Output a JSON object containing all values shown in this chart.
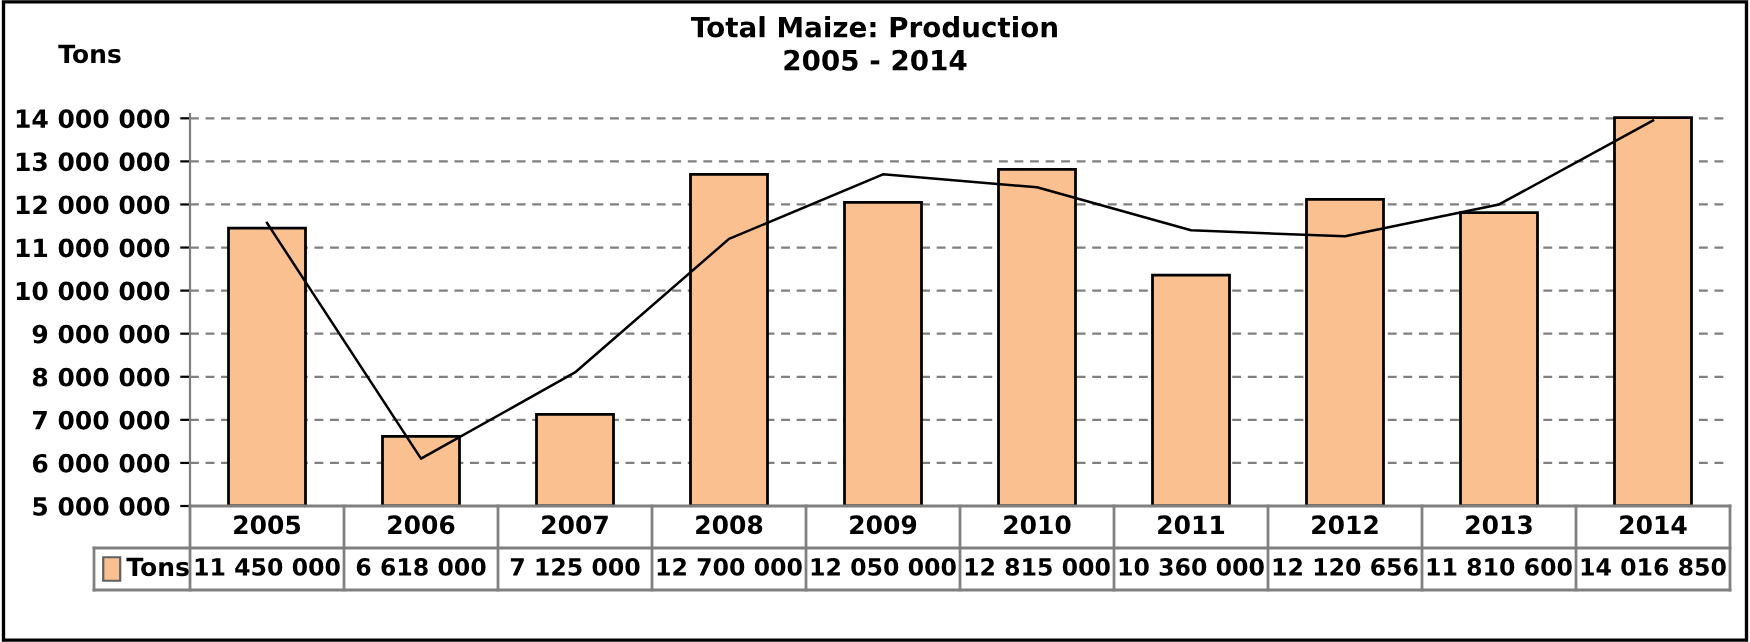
{
  "chart_data": {
    "type": "bar",
    "title": "Total Maize: Production\n2005 - 2014",
    "ylabel": "Tons",
    "categories": [
      "2005",
      "2006",
      "2007",
      "2008",
      "2009",
      "2010",
      "2011",
      "2012",
      "2013",
      "2014"
    ],
    "series": [
      {
        "name": "Tons",
        "color": "#fac090",
        "values": [
          11450000,
          6618000,
          7125000,
          12700000,
          12050000,
          12815000,
          10360000,
          12120656,
          11810600,
          14016850
        ],
        "value_labels": [
          "11 450 000",
          "6 618 000",
          "7 125 000",
          "12 700 000",
          "12 050 000",
          "12 815 000",
          "10 360 000",
          "12 120 656",
          "11 810 600",
          "14 016 850"
        ]
      },
      {
        "type": "line",
        "color": "#000000",
        "values": [
          11570000,
          6100000,
          8100000,
          11200000,
          12700000,
          12400000,
          11400000,
          11260000,
          12000000,
          13950000
        ]
      }
    ],
    "legend": "bottom left",
    "ylim": [
      5000000,
      14100000
    ],
    "yticks": [
      {
        "value": 5000000,
        "label": "5 000 000"
      },
      {
        "value": 6000000,
        "label": "6 000 000"
      },
      {
        "value": 7000000,
        "label": "7 000 000"
      },
      {
        "value": 8000000,
        "label": "8 000 000"
      },
      {
        "value": 9000000,
        "label": "9 000 000"
      },
      {
        "value": 10000000,
        "label": "10 000 000"
      },
      {
        "value": 11000000,
        "label": "11 000 000"
      },
      {
        "value": 12000000,
        "label": "12 000 000"
      },
      {
        "value": 13000000,
        "label": "13 000 000"
      },
      {
        "value": 14000000,
        "label": "14 000 000"
      }
    ],
    "grid": "y"
  }
}
